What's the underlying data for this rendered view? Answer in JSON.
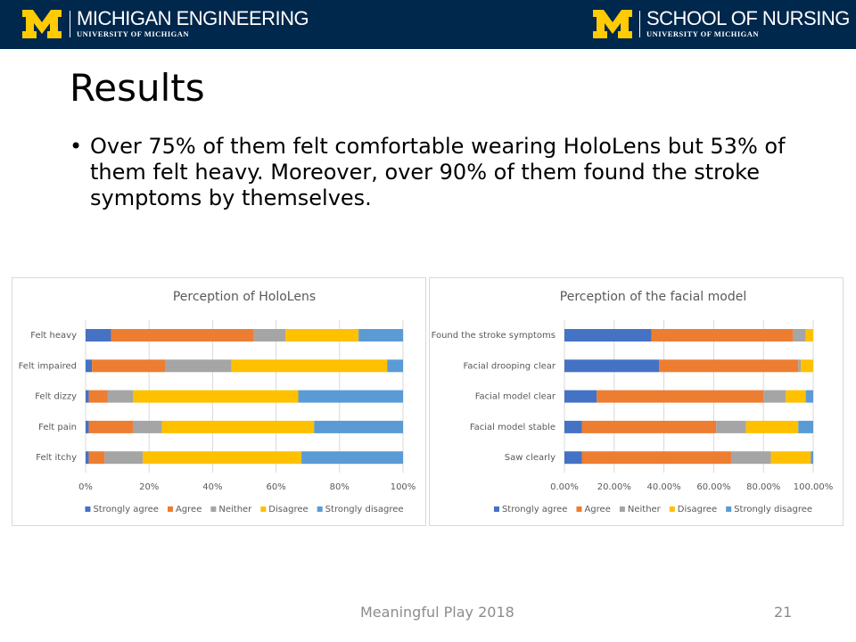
{
  "header": {
    "left_title": "MICHIGAN ENGINEERING",
    "left_subtitle": "UNIVERSITY OF MICHIGAN",
    "right_title": "SCHOOL OF NURSING",
    "right_subtitle": "UNIVERSITY OF MICHIGAN"
  },
  "title": "Results",
  "bullet": "Over 75% of them felt comfortable wearing HoloLens but 53% of them felt heavy. Moreover, over 90% of them found the stroke symptoms by themselves.",
  "footer": {
    "text": "Meaningful Play 2018",
    "page": "21"
  },
  "chart_data": [
    {
      "type": "stacked_bar_horizontal",
      "title": "Perception of HoloLens",
      "categories": [
        "Felt heavy",
        "Felt impaired",
        "Felt dizzy",
        "Felt pain",
        "Felt itchy"
      ],
      "series": [
        {
          "name": "Strongly agree",
          "color": "#4472c4",
          "values": [
            8,
            2,
            1,
            1,
            1
          ]
        },
        {
          "name": "Agree",
          "color": "#ed7d31",
          "values": [
            45,
            23,
            6,
            14,
            5
          ]
        },
        {
          "name": "Neither",
          "color": "#a5a5a5",
          "values": [
            10,
            21,
            8,
            9,
            12
          ]
        },
        {
          "name": "Disagree",
          "color": "#ffc000",
          "values": [
            23,
            49,
            52,
            48,
            50
          ]
        },
        {
          "name": "Strongly disagree",
          "color": "#5b9bd5",
          "values": [
            14,
            5,
            33,
            28,
            32
          ]
        }
      ],
      "xlim": [
        0,
        100
      ],
      "xticks": [
        {
          "value": 0,
          "label": "0%"
        },
        {
          "value": 20,
          "label": "20%"
        },
        {
          "value": 40,
          "label": "40%"
        },
        {
          "value": 60,
          "label": "60%"
        },
        {
          "value": 80,
          "label": "80%"
        },
        {
          "value": 100,
          "label": "100%"
        }
      ],
      "grid": true,
      "legend": "bottom"
    },
    {
      "type": "stacked_bar_horizontal",
      "title": "Perception of the facial model",
      "categories": [
        "Found the stroke symptoms",
        "Facial drooping clear",
        "Facial model clear",
        "Facial model stable",
        "Saw clearly"
      ],
      "series": [
        {
          "name": "Strongly agree",
          "color": "#4472c4",
          "values": [
            35,
            38,
            13,
            7,
            7
          ]
        },
        {
          "name": "Agree",
          "color": "#ed7d31",
          "values": [
            57,
            56,
            67,
            54,
            60
          ]
        },
        {
          "name": "Neither",
          "color": "#a5a5a5",
          "values": [
            5,
            1,
            9,
            12,
            16
          ]
        },
        {
          "name": "Disagree",
          "color": "#ffc000",
          "values": [
            3,
            5,
            8,
            21,
            16
          ]
        },
        {
          "name": "Strongly disagree",
          "color": "#5b9bd5",
          "values": [
            0,
            0,
            3,
            6,
            1
          ]
        }
      ],
      "xlim": [
        0,
        100
      ],
      "xticks": [
        {
          "value": 0,
          "label": "0.00%"
        },
        {
          "value": 20,
          "label": "20.00%"
        },
        {
          "value": 40,
          "label": "40.00%"
        },
        {
          "value": 60,
          "label": "60.00%"
        },
        {
          "value": 80,
          "label": "80.00%"
        },
        {
          "value": 100,
          "label": "100.00%"
        }
      ],
      "grid": true,
      "legend": "bottom"
    }
  ]
}
